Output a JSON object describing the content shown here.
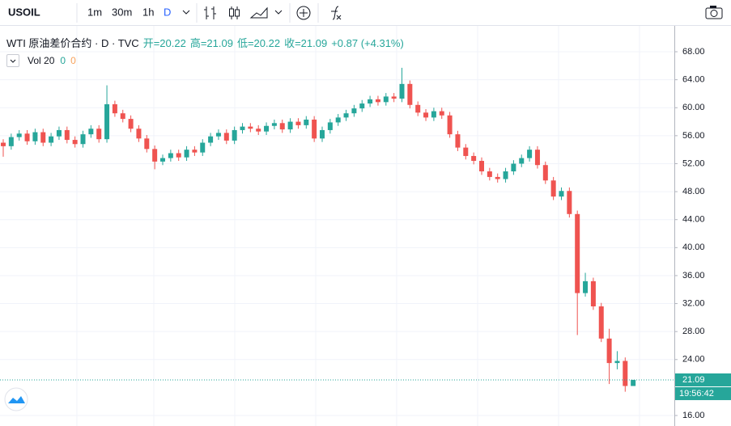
{
  "toolbar": {
    "symbol": "USOIL",
    "intervals": [
      "1m",
      "30m",
      "1h",
      "D"
    ]
  },
  "legend": {
    "title": "WTI 原油差价合约 · D · TVC",
    "items": [
      "开=20.22",
      "高=21.09",
      "低=20.22",
      "收=21.09",
      "+0.87 (+4.31%)"
    ],
    "volume": {
      "name": "Vol 20",
      "values": [
        "0",
        "0"
      ]
    }
  },
  "chart_data": {
    "type": "candlestick",
    "up_color": "#26a69a",
    "down_color": "#ef5350",
    "grid": true,
    "ylim": [
      14.5,
      71.7
    ],
    "yticks": [
      {
        "value": 16,
        "label": "16.00"
      },
      {
        "value": 24,
        "label": "24.00"
      },
      {
        "value": 28,
        "label": "28.00"
      },
      {
        "value": 32,
        "label": "32.00"
      },
      {
        "value": 36,
        "label": "36.00"
      },
      {
        "value": 40,
        "label": "40.00"
      },
      {
        "value": 44,
        "label": "44.00"
      },
      {
        "value": 48,
        "label": "48.00"
      },
      {
        "value": 52,
        "label": "52.00"
      },
      {
        "value": 56,
        "label": "56.00"
      },
      {
        "value": 60,
        "label": "60.00"
      },
      {
        "value": 64,
        "label": "64.00"
      },
      {
        "value": 68,
        "label": "68.00"
      }
    ],
    "last_price": 21.09,
    "countdown": "19:56:42",
    "open": [
      55.0,
      54.5,
      55.8,
      56.3,
      55.2,
      56.5,
      55.0,
      55.9,
      56.8,
      55.4,
      54.8,
      56.2,
      57.0,
      55.5,
      60.5,
      59.2,
      58.4,
      57.0,
      55.6,
      54.1,
      52.3,
      52.8,
      53.5,
      52.9,
      54.0,
      53.6,
      55.0,
      55.9,
      56.4,
      55.3,
      56.8,
      57.3,
      57.0,
      56.6,
      57.4,
      57.8,
      56.9,
      58.0,
      57.5,
      58.3,
      55.6,
      56.8,
      57.9,
      58.6,
      59.2,
      59.9,
      60.6,
      61.2,
      60.8,
      61.6,
      61.3,
      63.4,
      60.4,
      59.3,
      58.6,
      59.5,
      58.9,
      56.2,
      54.3,
      53.1,
      52.4,
      50.9,
      50.1,
      49.8,
      50.9,
      52.0,
      52.8,
      54.0,
      51.8,
      49.6,
      47.3,
      48.1,
      44.8,
      33.5,
      35.2,
      31.6,
      27.0,
      23.5,
      23.8,
      20.22
    ],
    "high": [
      55.5,
      56.3,
      56.8,
      56.8,
      57.0,
      57.0,
      56.4,
      57.3,
      57.3,
      55.9,
      56.7,
      57.5,
      57.5,
      63.2,
      61.0,
      59.7,
      58.9,
      57.5,
      56.1,
      54.6,
      53.3,
      54.0,
      54.0,
      54.5,
      54.5,
      55.5,
      56.4,
      56.9,
      56.9,
      57.3,
      57.8,
      57.8,
      57.5,
      57.9,
      58.3,
      58.3,
      58.5,
      58.5,
      58.8,
      58.8,
      57.3,
      58.4,
      59.1,
      59.7,
      60.4,
      61.1,
      61.7,
      61.7,
      62.1,
      62.1,
      65.7,
      63.9,
      60.9,
      59.8,
      60.0,
      60.0,
      59.4,
      56.7,
      54.8,
      53.6,
      52.9,
      51.4,
      50.6,
      51.4,
      52.5,
      53.3,
      54.5,
      54.5,
      52.3,
      50.1,
      48.6,
      48.6,
      45.3,
      36.4,
      35.7,
      32.1,
      28.4,
      25.2,
      24.3,
      21.09
    ],
    "low": [
      53.0,
      54.0,
      55.3,
      54.7,
      54.7,
      54.5,
      54.5,
      55.4,
      54.9,
      54.3,
      54.3,
      55.7,
      55.0,
      55.0,
      58.7,
      57.9,
      56.5,
      55.1,
      53.6,
      51.2,
      51.8,
      52.3,
      52.4,
      52.4,
      53.1,
      53.1,
      54.5,
      55.4,
      54.8,
      54.8,
      56.3,
      56.5,
      56.1,
      56.1,
      56.9,
      56.4,
      56.4,
      57.0,
      57.0,
      55.1,
      55.1,
      56.3,
      57.4,
      58.1,
      58.7,
      59.4,
      60.1,
      60.3,
      60.3,
      60.8,
      60.8,
      59.9,
      58.8,
      58.1,
      58.1,
      58.4,
      55.7,
      53.8,
      52.6,
      51.9,
      50.4,
      49.6,
      49.3,
      49.3,
      50.4,
      51.5,
      52.3,
      51.3,
      49.1,
      46.8,
      46.8,
      44.3,
      27.5,
      33.0,
      31.1,
      26.5,
      20.5,
      22.6,
      19.4,
      20.22
    ],
    "close": [
      54.5,
      55.8,
      56.3,
      55.2,
      56.5,
      55.0,
      55.9,
      56.8,
      55.4,
      54.8,
      56.2,
      57.0,
      55.5,
      60.5,
      59.2,
      58.4,
      57.0,
      55.6,
      54.1,
      52.3,
      52.8,
      53.5,
      52.9,
      54.0,
      53.6,
      55.0,
      55.9,
      56.4,
      55.3,
      56.8,
      57.3,
      57.0,
      56.6,
      57.4,
      57.8,
      56.9,
      58.0,
      57.5,
      58.3,
      55.6,
      56.8,
      57.9,
      58.6,
      59.2,
      59.9,
      60.6,
      61.2,
      60.8,
      61.6,
      61.3,
      63.4,
      60.4,
      59.3,
      58.6,
      59.5,
      58.9,
      56.2,
      54.3,
      53.1,
      52.4,
      50.9,
      50.1,
      49.8,
      50.9,
      52.0,
      52.8,
      54.0,
      51.8,
      49.6,
      47.3,
      48.1,
      44.8,
      33.5,
      35.2,
      31.6,
      27.0,
      23.5,
      23.8,
      20.22,
      21.09
    ]
  }
}
